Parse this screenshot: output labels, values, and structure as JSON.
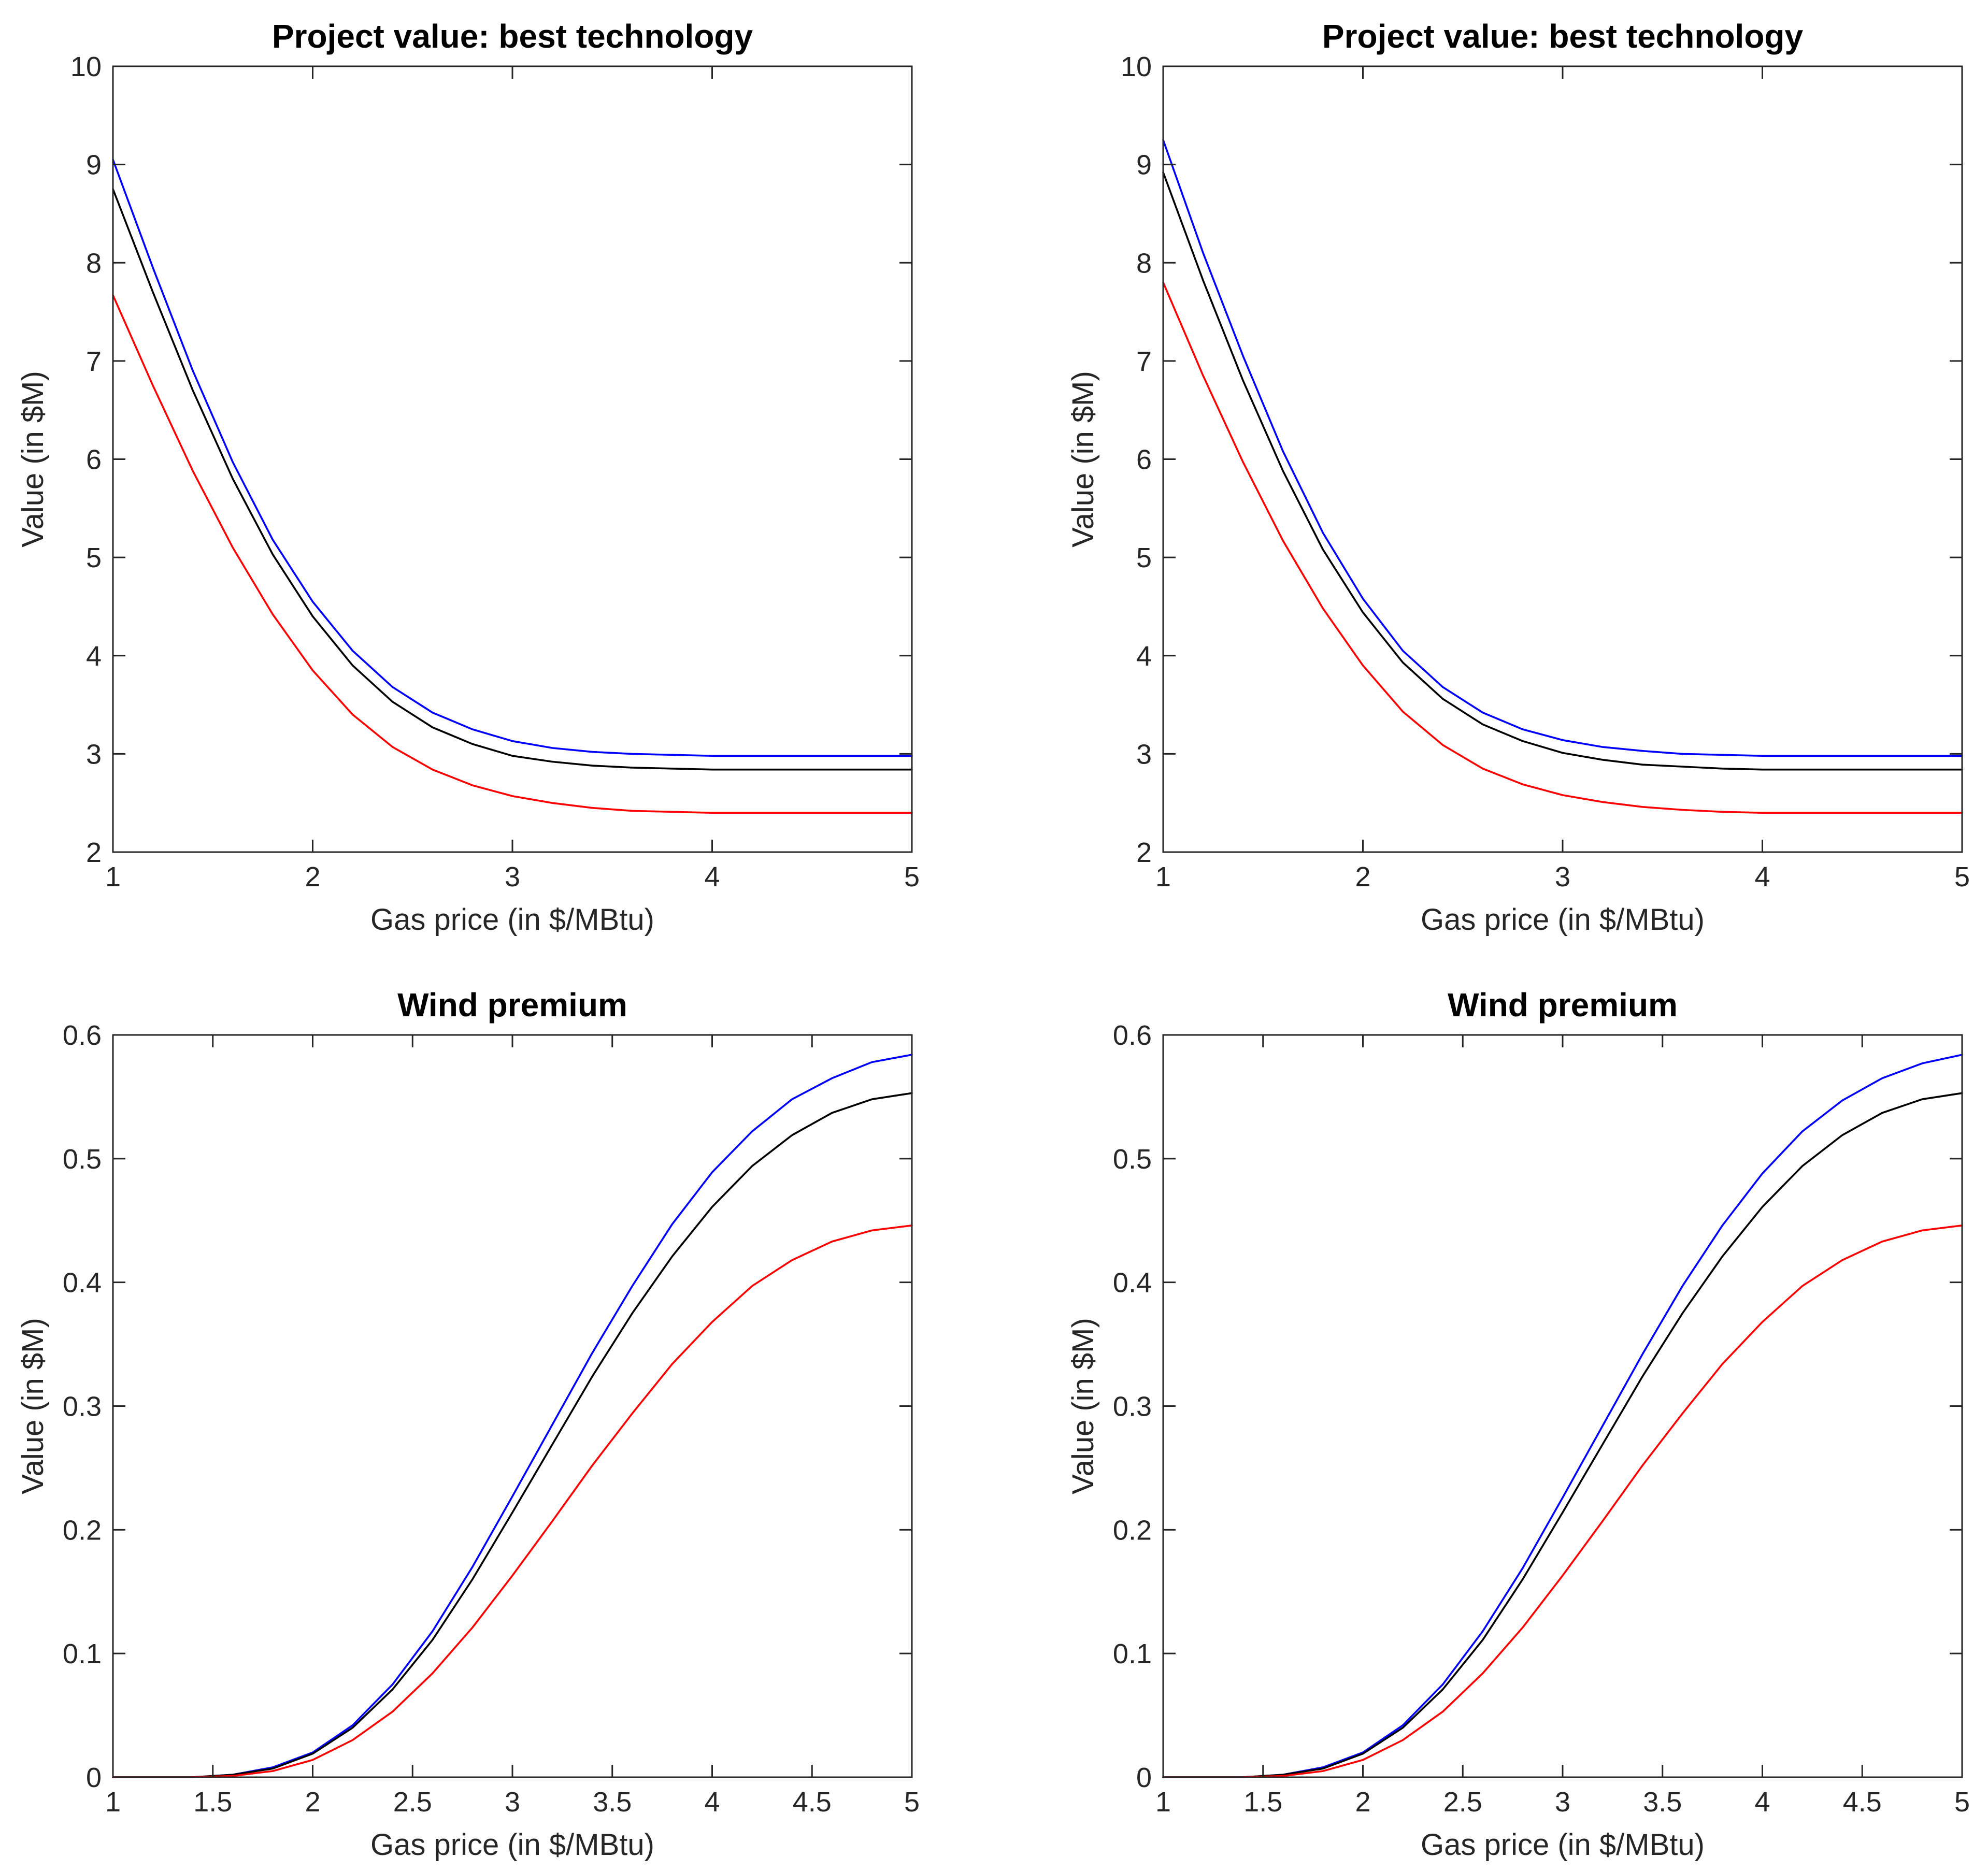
{
  "colors": {
    "blue": "#0000ff",
    "black": "#000000",
    "red": "#ff0000"
  },
  "chart_data": [
    {
      "type": "line",
      "title": "Project value: best technology",
      "xlabel": "Gas price (in $/MBtu)",
      "ylabel": "Value (in $M)",
      "xlim": [
        1,
        5
      ],
      "ylim": [
        2,
        10
      ],
      "xticks": [
        1,
        2,
        3,
        4,
        5
      ],
      "xtick_labels": [
        "1",
        "2",
        "3",
        "4",
        "5"
      ],
      "yticks": [
        2,
        3,
        4,
        5,
        6,
        7,
        8,
        9,
        10
      ],
      "ytick_labels": [
        "2",
        "3",
        "4",
        "5",
        "6",
        "7",
        "8",
        "9",
        "10"
      ],
      "x": [
        1.0,
        1.2,
        1.4,
        1.6,
        1.8,
        2.0,
        2.2,
        2.4,
        2.6,
        2.8,
        3.0,
        3.2,
        3.4,
        3.6,
        3.8,
        4.0,
        4.2,
        4.4,
        4.6,
        4.8,
        5.0
      ],
      "series": [
        {
          "name": "blue",
          "color": "#0000ff",
          "values": [
            9.05,
            7.95,
            6.9,
            5.97,
            5.18,
            4.55,
            4.05,
            3.68,
            3.42,
            3.25,
            3.13,
            3.06,
            3.02,
            3.0,
            2.99,
            2.98,
            2.98,
            2.98,
            2.98,
            2.98,
            2.98
          ]
        },
        {
          "name": "black",
          "color": "#000000",
          "values": [
            8.75,
            7.7,
            6.7,
            5.8,
            5.03,
            4.4,
            3.9,
            3.53,
            3.27,
            3.1,
            2.98,
            2.92,
            2.88,
            2.86,
            2.85,
            2.84,
            2.84,
            2.84,
            2.84,
            2.84,
            2.84
          ]
        },
        {
          "name": "red",
          "color": "#ff0000",
          "values": [
            7.67,
            6.75,
            5.88,
            5.1,
            4.42,
            3.85,
            3.4,
            3.07,
            2.84,
            2.68,
            2.57,
            2.5,
            2.45,
            2.42,
            2.41,
            2.4,
            2.4,
            2.4,
            2.4,
            2.4,
            2.4
          ]
        }
      ]
    },
    {
      "type": "line",
      "title": "Project value: best technology",
      "xlabel": "Gas price (in $/MBtu)",
      "ylabel": "Value (in $M)",
      "xlim": [
        1,
        5
      ],
      "ylim": [
        2,
        10
      ],
      "xticks": [
        1,
        2,
        3,
        4,
        5
      ],
      "xtick_labels": [
        "1",
        "2",
        "3",
        "4",
        "5"
      ],
      "yticks": [
        2,
        3,
        4,
        5,
        6,
        7,
        8,
        9,
        10
      ],
      "ytick_labels": [
        "2",
        "3",
        "4",
        "5",
        "6",
        "7",
        "8",
        "9",
        "10"
      ],
      "x": [
        1.0,
        1.2,
        1.4,
        1.6,
        1.8,
        2.0,
        2.2,
        2.4,
        2.6,
        2.8,
        3.0,
        3.2,
        3.4,
        3.6,
        3.8,
        4.0,
        4.2,
        4.4,
        4.6,
        4.8,
        5.0
      ],
      "series": [
        {
          "name": "blue",
          "color": "#0000ff",
          "values": [
            9.25,
            8.1,
            7.05,
            6.08,
            5.25,
            4.58,
            4.05,
            3.68,
            3.42,
            3.25,
            3.14,
            3.07,
            3.03,
            3.0,
            2.99,
            2.98,
            2.98,
            2.98,
            2.98,
            2.98,
            2.98
          ]
        },
        {
          "name": "black",
          "color": "#000000",
          "values": [
            8.92,
            7.82,
            6.8,
            5.88,
            5.08,
            4.44,
            3.93,
            3.56,
            3.3,
            3.13,
            3.01,
            2.94,
            2.89,
            2.87,
            2.85,
            2.84,
            2.84,
            2.84,
            2.84,
            2.84,
            2.84
          ]
        },
        {
          "name": "red",
          "color": "#ff0000",
          "values": [
            7.8,
            6.85,
            5.97,
            5.17,
            4.48,
            3.9,
            3.43,
            3.09,
            2.85,
            2.69,
            2.58,
            2.51,
            2.46,
            2.43,
            2.41,
            2.4,
            2.4,
            2.4,
            2.4,
            2.4,
            2.4
          ]
        }
      ]
    },
    {
      "type": "line",
      "title": "Wind premium",
      "xlabel": "Gas price (in $/MBtu)",
      "ylabel": "Value (in $M)",
      "xlim": [
        1,
        5
      ],
      "ylim": [
        0,
        0.6
      ],
      "xticks": [
        1,
        1.5,
        2,
        2.5,
        3,
        3.5,
        4,
        4.5,
        5
      ],
      "xtick_labels": [
        "1",
        "1.5",
        "2",
        "2.5",
        "3",
        "3.5",
        "4",
        "4.5",
        "5"
      ],
      "yticks": [
        0,
        0.1,
        0.2,
        0.3,
        0.4,
        0.5,
        0.6
      ],
      "ytick_labels": [
        "0",
        "0.1",
        "0.2",
        "0.3",
        "0.4",
        "0.5",
        "0.6"
      ],
      "x": [
        1.0,
        1.2,
        1.4,
        1.6,
        1.8,
        2.0,
        2.2,
        2.4,
        2.6,
        2.8,
        3.0,
        3.2,
        3.4,
        3.6,
        3.8,
        4.0,
        4.2,
        4.4,
        4.6,
        4.8,
        5.0
      ],
      "series": [
        {
          "name": "blue",
          "color": "#0000ff",
          "values": [
            0.0,
            0.0,
            0.0,
            0.002,
            0.008,
            0.02,
            0.042,
            0.075,
            0.118,
            0.17,
            0.227,
            0.285,
            0.343,
            0.397,
            0.447,
            0.489,
            0.522,
            0.548,
            0.565,
            0.578,
            0.584
          ]
        },
        {
          "name": "black",
          "color": "#000000",
          "values": [
            0.0,
            0.0,
            0.0,
            0.002,
            0.007,
            0.019,
            0.04,
            0.071,
            0.111,
            0.16,
            0.214,
            0.269,
            0.324,
            0.375,
            0.421,
            0.461,
            0.494,
            0.519,
            0.537,
            0.548,
            0.553
          ]
        },
        {
          "name": "red",
          "color": "#ff0000",
          "values": [
            0.0,
            0.0,
            0.0,
            0.001,
            0.005,
            0.014,
            0.03,
            0.053,
            0.084,
            0.121,
            0.163,
            0.207,
            0.252,
            0.294,
            0.334,
            0.368,
            0.397,
            0.418,
            0.433,
            0.442,
            0.446
          ]
        }
      ]
    },
    {
      "type": "line",
      "title": "Wind premium",
      "xlabel": "Gas price (in $/MBtu)",
      "ylabel": "Value (in $M)",
      "xlim": [
        1,
        5
      ],
      "ylim": [
        0,
        0.6
      ],
      "xticks": [
        1,
        1.5,
        2,
        2.5,
        3,
        3.5,
        4,
        4.5,
        5
      ],
      "xtick_labels": [
        "1",
        "1.5",
        "2",
        "2.5",
        "3",
        "3.5",
        "4",
        "4.5",
        "5"
      ],
      "yticks": [
        0,
        0.1,
        0.2,
        0.3,
        0.4,
        0.5,
        0.6
      ],
      "ytick_labels": [
        "0",
        "0.1",
        "0.2",
        "0.3",
        "0.4",
        "0.5",
        "0.6"
      ],
      "x": [
        1.0,
        1.2,
        1.4,
        1.6,
        1.8,
        2.0,
        2.2,
        2.4,
        2.6,
        2.8,
        3.0,
        3.2,
        3.4,
        3.6,
        3.8,
        4.0,
        4.2,
        4.4,
        4.6,
        4.8,
        5.0
      ],
      "series": [
        {
          "name": "blue",
          "color": "#0000ff",
          "values": [
            0.0,
            0.0,
            0.0,
            0.002,
            0.008,
            0.02,
            0.042,
            0.075,
            0.118,
            0.169,
            0.226,
            0.284,
            0.342,
            0.397,
            0.446,
            0.488,
            0.522,
            0.547,
            0.565,
            0.577,
            0.584
          ]
        },
        {
          "name": "black",
          "color": "#000000",
          "values": [
            0.0,
            0.0,
            0.0,
            0.002,
            0.007,
            0.019,
            0.04,
            0.071,
            0.111,
            0.16,
            0.214,
            0.269,
            0.324,
            0.375,
            0.421,
            0.461,
            0.494,
            0.519,
            0.537,
            0.548,
            0.553
          ]
        },
        {
          "name": "red",
          "color": "#ff0000",
          "values": [
            0.0,
            0.0,
            0.0,
            0.001,
            0.005,
            0.014,
            0.03,
            0.053,
            0.084,
            0.121,
            0.163,
            0.207,
            0.252,
            0.294,
            0.334,
            0.368,
            0.397,
            0.418,
            0.433,
            0.442,
            0.446
          ]
        }
      ]
    }
  ]
}
